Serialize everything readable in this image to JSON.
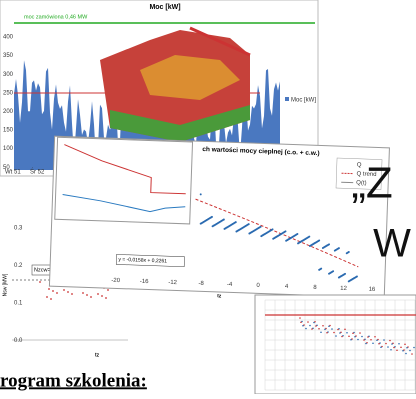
{
  "top_chart": {
    "title": "Moc [kW]",
    "ordered_power_label": "moc zamówiona 0,46 MW",
    "legend": "Moc [kW]",
    "yticks": [
      "400",
      "350",
      "300",
      "250",
      "200",
      "150",
      "100",
      "50"
    ],
    "xlabels": [
      "Wt 51",
      "Śr 52"
    ]
  },
  "middle_chart": {
    "title": "ch wartości mocy cieplnej (c.o. + c.w.)",
    "equation": "y = -0,0158x + 0,2261",
    "xticks": [
      "-20",
      "-16",
      "-12",
      "-8",
      "-4",
      "0",
      "4",
      "8",
      "12",
      "16"
    ],
    "xlabel": "tz",
    "legend": [
      "Q",
      "Q trend",
      "Q(t)"
    ]
  },
  "left_chart": {
    "ylabel": "Nsw [MW]",
    "yticks": [
      "0.3",
      "0.2",
      "0.1",
      "0.0"
    ],
    "annotation": "Nzcw=0,152 MW",
    "xlabel": "tz"
  },
  "slide": {
    "heading_1": "„Z",
    "heading_2": "W",
    "section": "rogram szkolenia:"
  }
}
